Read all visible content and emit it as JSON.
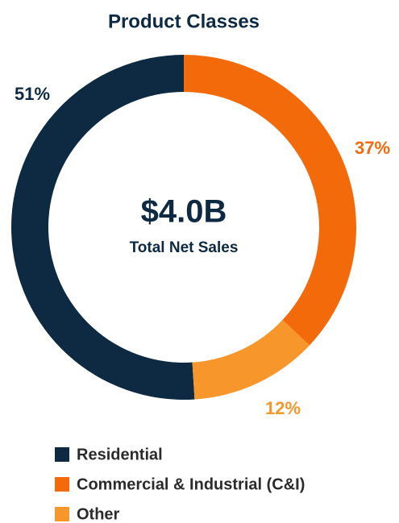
{
  "chart_data": {
    "type": "donut",
    "title": "Product Classes",
    "categories": [
      "Residential",
      "Commercial & Industrial (C&I)",
      "Other"
    ],
    "values": [
      51,
      37,
      12
    ],
    "value_labels": [
      "51%",
      "37%",
      "12%"
    ],
    "colors": [
      "#0d2a42",
      "#f26a0a",
      "#f7962a"
    ],
    "annotations": [
      "$4.0B",
      "Total Net Sales"
    ]
  }
}
